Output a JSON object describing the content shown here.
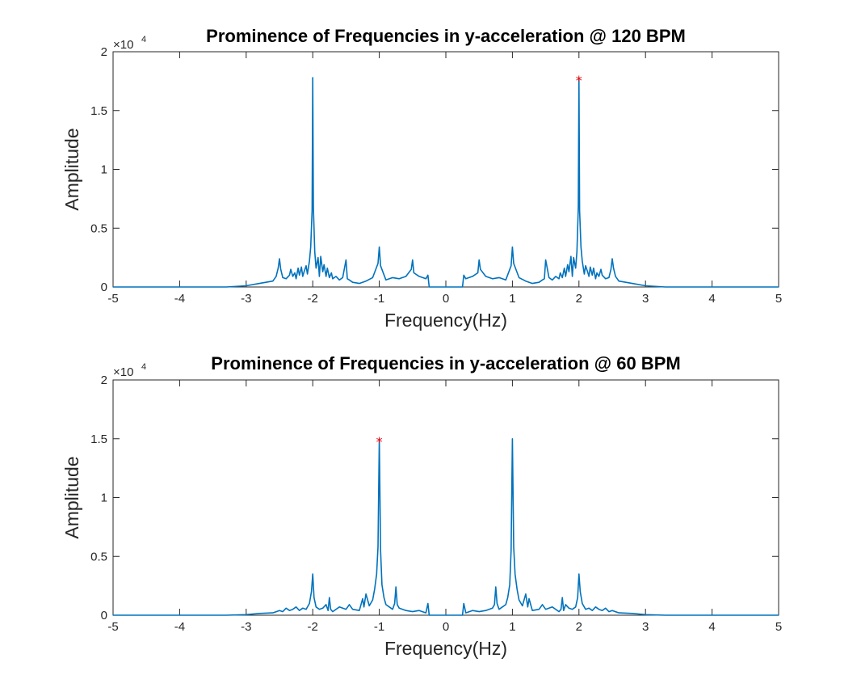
{
  "chart_data": [
    {
      "type": "line",
      "title": "Prominence of Frequencies in y-acceleration @ 120 BPM",
      "xlabel": "Frequency(Hz)",
      "ylabel": "Amplitude",
      "y_exponent_label": "×10",
      "y_exponent_power": "4",
      "xlim": [
        -5,
        5
      ],
      "ylim": [
        0,
        20000
      ],
      "x_ticks": [
        -5,
        -4,
        -3,
        -2,
        -1,
        0,
        1,
        2,
        3,
        4,
        5
      ],
      "x_tick_labels": [
        "-5",
        "-4",
        "-3",
        "-2",
        "-1",
        "0",
        "1",
        "2",
        "3",
        "4",
        "5"
      ],
      "y_ticks": [
        0,
        5000,
        10000,
        15000,
        20000
      ],
      "y_tick_labels": [
        "0",
        "0.5",
        "1",
        "1.5",
        "2"
      ],
      "grid": false,
      "series_color": "#0072BD",
      "marker_color": "#FF0000",
      "marker_symbol": "*",
      "series": [
        {
          "x": [
            -5,
            -3.3,
            -3.0,
            -2.8,
            -2.6,
            -2.55,
            -2.52,
            -2.5,
            -2.48,
            -2.45,
            -2.4,
            -2.35,
            -2.33,
            -2.3,
            -2.27,
            -2.25,
            -2.22,
            -2.2,
            -2.17,
            -2.15,
            -2.13,
            -2.1,
            -2.08,
            -2.05,
            -2.03,
            -2.01,
            -2.0,
            -1.99,
            -1.97,
            -1.95,
            -1.92,
            -1.9,
            -1.88,
            -1.85,
            -1.83,
            -1.8,
            -1.78,
            -1.75,
            -1.72,
            -1.7,
            -1.65,
            -1.6,
            -1.55,
            -1.5,
            -1.48,
            -1.45,
            -1.4,
            -1.3,
            -1.2,
            -1.1,
            -1.02,
            -1.0,
            -0.98,
            -0.9,
            -0.8,
            -0.7,
            -0.6,
            -0.52,
            -0.5,
            -0.48,
            -0.4,
            -0.3,
            -0.27,
            -0.25,
            0.25,
            0.27,
            0.3,
            0.4,
            0.48,
            0.5,
            0.52,
            0.6,
            0.7,
            0.8,
            0.9,
            0.98,
            1.0,
            1.02,
            1.1,
            1.2,
            1.3,
            1.4,
            1.45,
            1.48,
            1.5,
            1.55,
            1.6,
            1.65,
            1.7,
            1.72,
            1.75,
            1.78,
            1.8,
            1.83,
            1.85,
            1.88,
            1.9,
            1.92,
            1.95,
            1.97,
            1.99,
            2.0,
            2.01,
            2.03,
            2.05,
            2.08,
            2.1,
            2.13,
            2.15,
            2.17,
            2.2,
            2.22,
            2.25,
            2.27,
            2.3,
            2.33,
            2.35,
            2.4,
            2.45,
            2.48,
            2.5,
            2.52,
            2.55,
            2.6,
            2.8,
            3.0,
            3.3,
            5
          ],
          "y": [
            0,
            0,
            100,
            300,
            500,
            900,
            1600,
            2400,
            1500,
            800,
            700,
            1000,
            1500,
            900,
            1200,
            700,
            1600,
            1000,
            1700,
            900,
            1300,
            1800,
            1100,
            2200,
            3400,
            6500,
            17800,
            6800,
            3000,
            1600,
            2500,
            900,
            2600,
            1300,
            1900,
            900,
            1600,
            800,
            1200,
            700,
            900,
            600,
            800,
            2300,
            700,
            600,
            400,
            300,
            500,
            800,
            2000,
            3400,
            1800,
            600,
            800,
            700,
            900,
            1500,
            2300,
            1200,
            900,
            700,
            1000,
            0,
            0,
            1000,
            700,
            900,
            1200,
            2300,
            1500,
            900,
            700,
            800,
            600,
            1800,
            3400,
            2000,
            800,
            500,
            300,
            400,
            600,
            700,
            2300,
            800,
            600,
            900,
            700,
            1200,
            800,
            1600,
            900,
            1900,
            1300,
            2600,
            900,
            2500,
            1600,
            3000,
            6800,
            17800,
            6500,
            3400,
            2200,
            1100,
            1800,
            1300,
            900,
            1700,
            1000,
            1600,
            700,
            1200,
            900,
            1500,
            1000,
            700,
            800,
            1500,
            2400,
            1600,
            900,
            500,
            300,
            100,
            0,
            0
          ]
        }
      ],
      "markers": [
        {
          "x": 2.0,
          "y": 17800
        }
      ]
    },
    {
      "type": "line",
      "title": "Prominence of Frequencies in y-acceleration @ 60 BPM",
      "xlabel": "Frequency(Hz)",
      "ylabel": "Amplitude",
      "y_exponent_label": "×10",
      "y_exponent_power": "4",
      "xlim": [
        -5,
        5
      ],
      "ylim": [
        0,
        20000
      ],
      "x_ticks": [
        -5,
        -4,
        -3,
        -2,
        -1,
        0,
        1,
        2,
        3,
        4,
        5
      ],
      "x_tick_labels": [
        "-5",
        "-4",
        "-3",
        "-2",
        "-1",
        "0",
        "1",
        "2",
        "3",
        "4",
        "5"
      ],
      "y_ticks": [
        0,
        5000,
        10000,
        15000,
        20000
      ],
      "y_tick_labels": [
        "0",
        "0.5",
        "1",
        "1.5",
        "2"
      ],
      "grid": false,
      "series_color": "#0072BD",
      "marker_color": "#FF0000",
      "marker_symbol": "*",
      "series": [
        {
          "x": [
            -5,
            -3.3,
            -3.0,
            -2.8,
            -2.6,
            -2.5,
            -2.45,
            -2.4,
            -2.35,
            -2.3,
            -2.25,
            -2.2,
            -2.15,
            -2.1,
            -2.05,
            -2.02,
            -2.0,
            -1.98,
            -1.95,
            -1.9,
            -1.85,
            -1.8,
            -1.77,
            -1.75,
            -1.73,
            -1.7,
            -1.6,
            -1.5,
            -1.45,
            -1.4,
            -1.3,
            -1.25,
            -1.23,
            -1.2,
            -1.15,
            -1.1,
            -1.07,
            -1.04,
            -1.02,
            -1.0,
            -0.98,
            -0.96,
            -0.93,
            -0.9,
            -0.85,
            -0.8,
            -0.77,
            -0.75,
            -0.73,
            -0.7,
            -0.6,
            -0.5,
            -0.4,
            -0.3,
            -0.27,
            -0.25,
            0.25,
            0.27,
            0.3,
            0.4,
            0.5,
            0.6,
            0.7,
            0.73,
            0.75,
            0.77,
            0.8,
            0.85,
            0.9,
            0.93,
            0.96,
            0.98,
            1.0,
            1.02,
            1.04,
            1.07,
            1.1,
            1.15,
            1.2,
            1.23,
            1.25,
            1.3,
            1.4,
            1.45,
            1.5,
            1.6,
            1.7,
            1.73,
            1.75,
            1.77,
            1.8,
            1.85,
            1.9,
            1.95,
            1.98,
            2.0,
            2.02,
            2.05,
            2.1,
            2.15,
            2.2,
            2.25,
            2.3,
            2.35,
            2.4,
            2.45,
            2.5,
            2.6,
            2.8,
            3.0,
            3.3,
            5
          ],
          "y": [
            0,
            0,
            50,
            150,
            200,
            400,
            300,
            600,
            400,
            500,
            700,
            400,
            600,
            500,
            1000,
            2000,
            3500,
            1500,
            700,
            500,
            600,
            900,
            400,
            1500,
            500,
            300,
            700,
            500,
            900,
            500,
            400,
            1400,
            700,
            1800,
            800,
            1300,
            2200,
            3500,
            5800,
            15000,
            5500,
            2600,
            1500,
            900,
            700,
            500,
            1000,
            2400,
            900,
            600,
            400,
            300,
            400,
            200,
            1000,
            0,
            0,
            1000,
            200,
            400,
            300,
            400,
            600,
            900,
            2400,
            1000,
            500,
            700,
            900,
            1500,
            2600,
            5500,
            15000,
            5800,
            3500,
            2200,
            1300,
            800,
            1800,
            700,
            1400,
            400,
            500,
            900,
            500,
            700,
            300,
            500,
            1500,
            400,
            900,
            600,
            500,
            700,
            1500,
            3500,
            2000,
            1000,
            500,
            600,
            400,
            700,
            500,
            400,
            600,
            300,
            400,
            200,
            150,
            50,
            0,
            0
          ]
        }
      ],
      "markers": [
        {
          "x": -1.0,
          "y": 15000
        }
      ]
    }
  ]
}
